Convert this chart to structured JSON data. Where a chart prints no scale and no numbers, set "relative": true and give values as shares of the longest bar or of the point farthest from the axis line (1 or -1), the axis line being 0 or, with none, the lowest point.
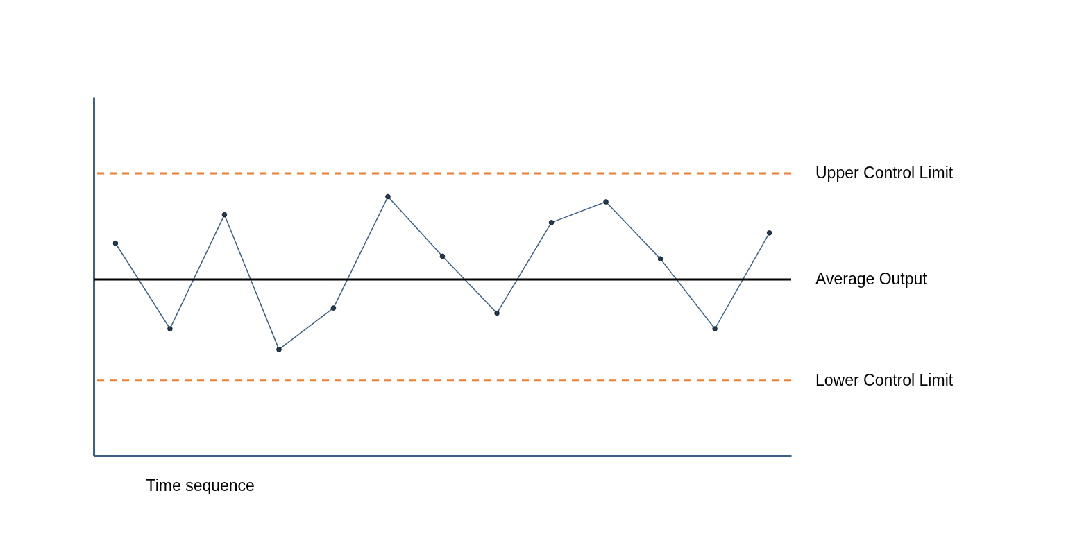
{
  "chart_data": {
    "type": "line",
    "relative": true,
    "xlabel": "Time sequence",
    "categories": [
      null,
      null,
      null,
      null,
      null,
      null,
      null,
      null,
      null,
      null,
      null,
      null,
      null
    ],
    "series": [
      {
        "color": "#3b6186",
        "values": [
          0.82,
          0.49,
          0.93,
          0.41,
          0.57,
          1.0,
          0.77,
          0.55,
          0.9,
          0.98,
          0.76,
          0.49,
          0.86
        ]
      }
    ],
    "ref_lines": [
      {
        "axis": "y",
        "value": 1.09,
        "label": "Upper Control Limit",
        "color": "#ed7d31",
        "line_style": "dashed"
      },
      {
        "axis": "y",
        "value": 0.68,
        "label": "Average Output",
        "color": "#000000",
        "line_style": "solid"
      },
      {
        "axis": "y",
        "value": 0.29,
        "label": "Lower Control Limit",
        "color": "#ed7d31",
        "line_style": "dashed"
      }
    ],
    "marker": "circle",
    "grid": false
  }
}
